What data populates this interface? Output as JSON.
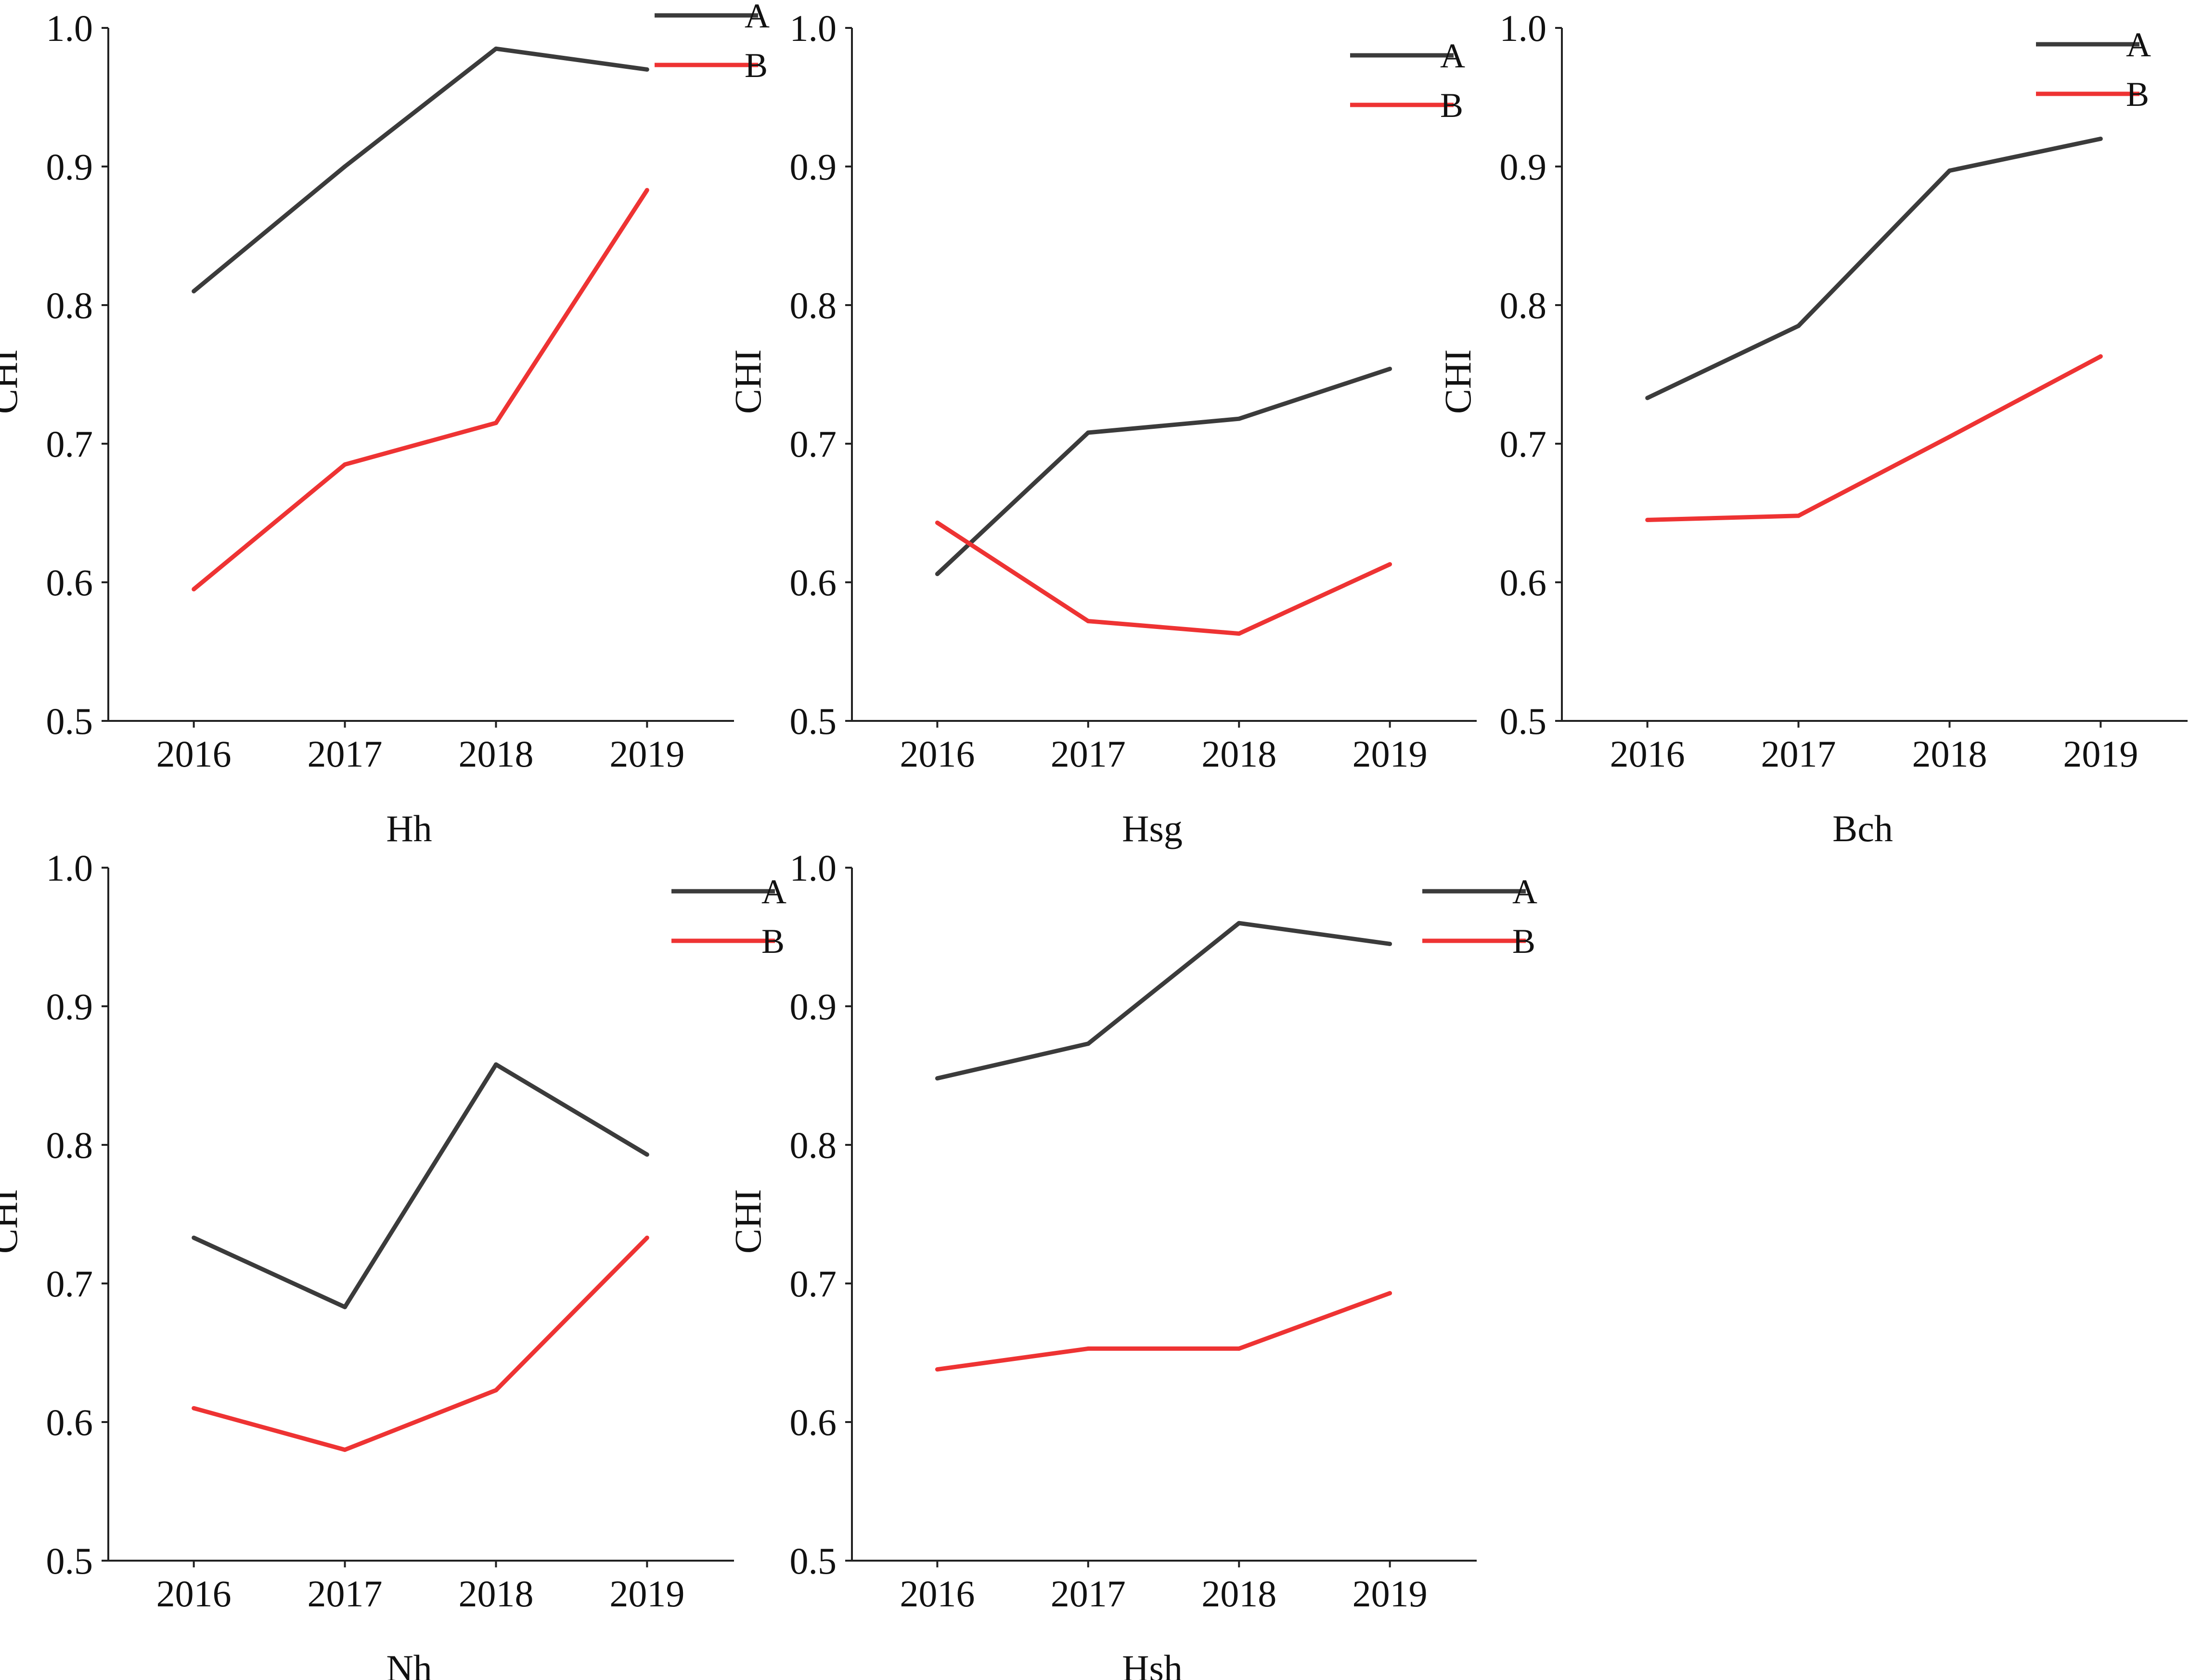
{
  "chart_data": [
    {
      "type": "line",
      "title": "",
      "xlabel": "Hh",
      "ylabel": "CHI",
      "categories": [
        "2016",
        "2017",
        "2018",
        "2019"
      ],
      "ylim": [
        0.5,
        1.0
      ],
      "yticks": [
        "0.5",
        "0.6",
        "0.7",
        "0.8",
        "0.9",
        "1.0"
      ],
      "legend": "top-right",
      "series": [
        {
          "name": "A",
          "color": "#3b3b3b",
          "values": [
            0.81,
            0.9,
            0.985,
            0.97
          ]
        },
        {
          "name": "B",
          "color": "#ee3333",
          "values": [
            0.595,
            0.685,
            0.715,
            0.883
          ]
        }
      ]
    },
    {
      "type": "line",
      "title": "",
      "xlabel": "Hsg",
      "ylabel": "CHI",
      "categories": [
        "2016",
        "2017",
        "2018",
        "2019"
      ],
      "ylim": [
        0.5,
        1.0
      ],
      "yticks": [
        "0.5",
        "0.6",
        "0.7",
        "0.8",
        "0.9",
        "1.0"
      ],
      "legend": "top-right",
      "series": [
        {
          "name": "A",
          "color": "#3b3b3b",
          "values": [
            0.606,
            0.708,
            0.718,
            0.754
          ]
        },
        {
          "name": "B",
          "color": "#ee3333",
          "values": [
            0.643,
            0.572,
            0.563,
            0.613
          ]
        }
      ]
    },
    {
      "type": "line",
      "title": "",
      "xlabel": "Bch",
      "ylabel": "CHI",
      "categories": [
        "2016",
        "2017",
        "2018",
        "2019"
      ],
      "ylim": [
        0.5,
        1.0
      ],
      "yticks": [
        "0.5",
        "0.6",
        "0.7",
        "0.8",
        "0.9",
        "1.0"
      ],
      "legend": "top-right",
      "series": [
        {
          "name": "A",
          "color": "#3b3b3b",
          "values": [
            0.733,
            0.785,
            0.897,
            0.92
          ]
        },
        {
          "name": "B",
          "color": "#ee3333",
          "values": [
            0.645,
            0.648,
            0.705,
            0.763
          ]
        }
      ]
    },
    {
      "type": "line",
      "title": "",
      "xlabel": "Nh",
      "ylabel": "CHI",
      "categories": [
        "2016",
        "2017",
        "2018",
        "2019"
      ],
      "ylim": [
        0.5,
        1.0
      ],
      "yticks": [
        "0.5",
        "0.6",
        "0.7",
        "0.8",
        "0.9",
        "1.0"
      ],
      "legend": "top-right",
      "series": [
        {
          "name": "A",
          "color": "#3b3b3b",
          "values": [
            0.733,
            0.683,
            0.858,
            0.793
          ]
        },
        {
          "name": "B",
          "color": "#ee3333",
          "values": [
            0.61,
            0.58,
            0.623,
            0.733
          ]
        }
      ]
    },
    {
      "type": "line",
      "title": "",
      "xlabel": "Hsh",
      "ylabel": "CHI",
      "categories": [
        "2016",
        "2017",
        "2018",
        "2019"
      ],
      "ylim": [
        0.5,
        1.0
      ],
      "yticks": [
        "0.5",
        "0.6",
        "0.7",
        "0.8",
        "0.9",
        "1.0"
      ],
      "legend": "top-right",
      "series": [
        {
          "name": "A",
          "color": "#3b3b3b",
          "values": [
            0.848,
            0.873,
            0.96,
            0.945
          ]
        },
        {
          "name": "B",
          "color": "#ee3333",
          "values": [
            0.638,
            0.653,
            0.653,
            0.693
          ]
        }
      ]
    }
  ]
}
